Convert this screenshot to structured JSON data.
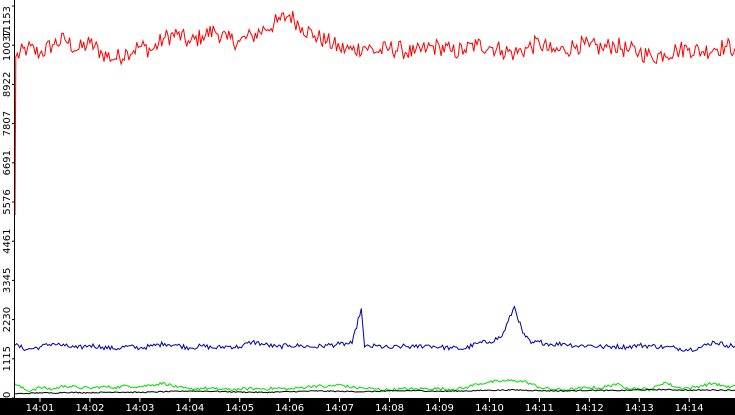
{
  "chart_data": {
    "type": "line",
    "title": "",
    "xlabel": "",
    "ylabel": "",
    "ylim": [
      0,
      11153
    ],
    "xlim": [
      "14:00:30",
      "14:14:55"
    ],
    "grid": false,
    "y_ticks": [
      "0",
      "1115",
      "2230",
      "3345",
      "4461",
      "5576",
      "6691",
      "7807",
      "8922",
      "10037",
      "11153"
    ],
    "x_ticks": [
      "14:01",
      "14:02",
      "14:03",
      "14:04",
      "14:05",
      "14:06",
      "14:07",
      "14:08",
      "14:09",
      "14:10",
      "14:11",
      "14:12",
      "14:13",
      "14:14"
    ],
    "series": [
      {
        "color": "#ff0000",
        "points": [
          [
            "14:00:30",
            5200
          ],
          [
            "14:00:31",
            9700
          ],
          [
            "14:00:45",
            9950
          ],
          [
            "14:01:00",
            9800
          ],
          [
            "14:01:15",
            10050
          ],
          [
            "14:01:30",
            10200
          ],
          [
            "14:01:45",
            9900
          ],
          [
            "14:02:00",
            10100
          ],
          [
            "14:02:15",
            9800
          ],
          [
            "14:02:30",
            9650
          ],
          [
            "14:02:45",
            9850
          ],
          [
            "14:03:00",
            10000
          ],
          [
            "14:03:15",
            9900
          ],
          [
            "14:03:30",
            10250
          ],
          [
            "14:03:45",
            10350
          ],
          [
            "14:04:00",
            10100
          ],
          [
            "14:04:15",
            10300
          ],
          [
            "14:04:30",
            10450
          ],
          [
            "14:04:45",
            10200
          ],
          [
            "14:05:00",
            10150
          ],
          [
            "14:05:15",
            10300
          ],
          [
            "14:05:30",
            10500
          ],
          [
            "14:05:45",
            10700
          ],
          [
            "14:06:00",
            10900
          ],
          [
            "14:06:15",
            10550
          ],
          [
            "14:06:30",
            10300
          ],
          [
            "14:06:45",
            10150
          ],
          [
            "14:07:00",
            9950
          ],
          [
            "14:07:15",
            9900
          ],
          [
            "14:07:30",
            10000
          ],
          [
            "14:07:45",
            9850
          ],
          [
            "14:08:00",
            9950
          ],
          [
            "14:08:15",
            9900
          ],
          [
            "14:08:30",
            9800
          ],
          [
            "14:08:45",
            9950
          ],
          [
            "14:09:00",
            10000
          ],
          [
            "14:09:15",
            9850
          ],
          [
            "14:09:30",
            9900
          ],
          [
            "14:09:45",
            10050
          ],
          [
            "14:10:00",
            10000
          ],
          [
            "14:10:15",
            9900
          ],
          [
            "14:10:30",
            9800
          ],
          [
            "14:10:45",
            9950
          ],
          [
            "14:11:00",
            10100
          ],
          [
            "14:11:15",
            9850
          ],
          [
            "14:11:30",
            9900
          ],
          [
            "14:11:45",
            10050
          ],
          [
            "14:12:00",
            10000
          ],
          [
            "14:12:15",
            9950
          ],
          [
            "14:12:30",
            10050
          ],
          [
            "14:12:45",
            9900
          ],
          [
            "14:13:00",
            9850
          ],
          [
            "14:13:15",
            9700
          ],
          [
            "14:13:30",
            9800
          ],
          [
            "14:13:45",
            9900
          ],
          [
            "14:14:00",
            9950
          ],
          [
            "14:14:15",
            9850
          ],
          [
            "14:14:30",
            9950
          ],
          [
            "14:14:45",
            10000
          ],
          [
            "14:14:55",
            9950
          ]
        ]
      },
      {
        "color": "#0000aa",
        "points": [
          [
            "14:00:30",
            1500
          ],
          [
            "14:00:45",
            1380
          ],
          [
            "14:01:00",
            1450
          ],
          [
            "14:01:15",
            1550
          ],
          [
            "14:01:30",
            1480
          ],
          [
            "14:01:45",
            1420
          ],
          [
            "14:02:00",
            1500
          ],
          [
            "14:02:15",
            1450
          ],
          [
            "14:02:30",
            1400
          ],
          [
            "14:02:45",
            1470
          ],
          [
            "14:03:00",
            1420
          ],
          [
            "14:03:15",
            1480
          ],
          [
            "14:03:30",
            1550
          ],
          [
            "14:03:45",
            1500
          ],
          [
            "14:04:00",
            1430
          ],
          [
            "14:04:15",
            1480
          ],
          [
            "14:04:30",
            1420
          ],
          [
            "14:04:45",
            1470
          ],
          [
            "14:05:00",
            1450
          ],
          [
            "14:05:15",
            1600
          ],
          [
            "14:05:30",
            1520
          ],
          [
            "14:05:45",
            1450
          ],
          [
            "14:06:00",
            1500
          ],
          [
            "14:06:15",
            1480
          ],
          [
            "14:06:30",
            1450
          ],
          [
            "14:06:45",
            1500
          ],
          [
            "14:07:00",
            1530
          ],
          [
            "14:07:15",
            1550
          ],
          [
            "14:07:26",
            2550
          ],
          [
            "14:07:30",
            1450
          ],
          [
            "14:07:45",
            1480
          ],
          [
            "14:08:00",
            1420
          ],
          [
            "14:08:15",
            1470
          ],
          [
            "14:08:30",
            1450
          ],
          [
            "14:08:45",
            1500
          ],
          [
            "14:09:00",
            1450
          ],
          [
            "14:09:15",
            1420
          ],
          [
            "14:09:30",
            1400
          ],
          [
            "14:09:45",
            1550
          ],
          [
            "14:10:00",
            1600
          ],
          [
            "14:10:15",
            1750
          ],
          [
            "14:10:30",
            2600
          ],
          [
            "14:10:40",
            1850
          ],
          [
            "14:10:50",
            1550
          ],
          [
            "14:11:00",
            1600
          ],
          [
            "14:11:15",
            1520
          ],
          [
            "14:11:30",
            1550
          ],
          [
            "14:11:45",
            1480
          ],
          [
            "14:12:00",
            1500
          ],
          [
            "14:12:15",
            1450
          ],
          [
            "14:12:30",
            1470
          ],
          [
            "14:12:45",
            1450
          ],
          [
            "14:13:00",
            1500
          ],
          [
            "14:13:15",
            1480
          ],
          [
            "14:13:30",
            1450
          ],
          [
            "14:13:45",
            1420
          ],
          [
            "14:14:00",
            1380
          ],
          [
            "14:14:15",
            1450
          ],
          [
            "14:14:30",
            1600
          ],
          [
            "14:14:45",
            1500
          ],
          [
            "14:14:55",
            1480
          ]
        ]
      },
      {
        "color": "#00dd00",
        "points": [
          [
            "14:00:30",
            400
          ],
          [
            "14:00:45",
            200
          ],
          [
            "14:01:00",
            300
          ],
          [
            "14:01:15",
            250
          ],
          [
            "14:01:30",
            350
          ],
          [
            "14:01:45",
            300
          ],
          [
            "14:02:00",
            280
          ],
          [
            "14:02:15",
            320
          ],
          [
            "14:02:30",
            300
          ],
          [
            "14:02:45",
            350
          ],
          [
            "14:03:00",
            320
          ],
          [
            "14:03:15",
            380
          ],
          [
            "14:03:30",
            420
          ],
          [
            "14:03:45",
            300
          ],
          [
            "14:04:00",
            250
          ],
          [
            "14:04:15",
            280
          ],
          [
            "14:04:30",
            260
          ],
          [
            "14:04:45",
            240
          ],
          [
            "14:05:00",
            250
          ],
          [
            "14:05:15",
            270
          ],
          [
            "14:05:30",
            260
          ],
          [
            "14:05:45",
            280
          ],
          [
            "14:06:00",
            250
          ],
          [
            "14:06:15",
            300
          ],
          [
            "14:06:30",
            350
          ],
          [
            "14:06:45",
            320
          ],
          [
            "14:07:00",
            380
          ],
          [
            "14:07:15",
            300
          ],
          [
            "14:07:30",
            280
          ],
          [
            "14:07:45",
            250
          ],
          [
            "14:08:00",
            230
          ],
          [
            "14:08:15",
            260
          ],
          [
            "14:08:30",
            250
          ],
          [
            "14:08:45",
            270
          ],
          [
            "14:09:00",
            260
          ],
          [
            "14:09:15",
            250
          ],
          [
            "14:09:30",
            280
          ],
          [
            "14:09:45",
            400
          ],
          [
            "14:10:00",
            450
          ],
          [
            "14:10:15",
            480
          ],
          [
            "14:10:30",
            500
          ],
          [
            "14:10:45",
            450
          ],
          [
            "14:11:00",
            300
          ],
          [
            "14:11:15",
            250
          ],
          [
            "14:11:30",
            230
          ],
          [
            "14:11:45",
            260
          ],
          [
            "14:12:00",
            300
          ],
          [
            "14:12:15",
            280
          ],
          [
            "14:12:30",
            400
          ],
          [
            "14:12:45",
            300
          ],
          [
            "14:13:00",
            260
          ],
          [
            "14:13:15",
            250
          ],
          [
            "14:13:30",
            450
          ],
          [
            "14:13:45",
            300
          ],
          [
            "14:14:00",
            280
          ],
          [
            "14:14:15",
            350
          ],
          [
            "14:14:30",
            420
          ],
          [
            "14:14:45",
            300
          ],
          [
            "14:14:55",
            350
          ]
        ]
      },
      {
        "color": "#000000",
        "points": [
          [
            "14:00:30",
            120
          ],
          [
            "14:00:45",
            130
          ],
          [
            "14:01:00",
            150
          ],
          [
            "14:01:15",
            140
          ],
          [
            "14:01:30",
            160
          ],
          [
            "14:02:00",
            150
          ],
          [
            "14:02:30",
            170
          ],
          [
            "14:03:00",
            160
          ],
          [
            "14:03:30",
            180
          ],
          [
            "14:04:00",
            200
          ],
          [
            "14:04:30",
            190
          ],
          [
            "14:05:00",
            170
          ],
          [
            "14:05:30",
            160
          ],
          [
            "14:06:00",
            180
          ],
          [
            "14:06:30",
            200
          ],
          [
            "14:07:00",
            190
          ],
          [
            "14:07:30",
            180
          ],
          [
            "14:08:00",
            200
          ],
          [
            "14:08:30",
            210
          ],
          [
            "14:09:00",
            190
          ],
          [
            "14:09:30",
            200
          ],
          [
            "14:10:00",
            220
          ],
          [
            "14:10:30",
            230
          ],
          [
            "14:11:00",
            210
          ],
          [
            "14:11:30",
            200
          ],
          [
            "14:12:00",
            220
          ],
          [
            "14:12:30",
            210
          ],
          [
            "14:13:00",
            230
          ],
          [
            "14:13:30",
            240
          ],
          [
            "14:14:00",
            220
          ],
          [
            "14:14:30",
            230
          ],
          [
            "14:14:55",
            220
          ]
        ]
      }
    ]
  },
  "colors": {
    "background": "#ffffff",
    "axis_bar": "#000000",
    "axis_text_on_bar": "#ffffff"
  }
}
